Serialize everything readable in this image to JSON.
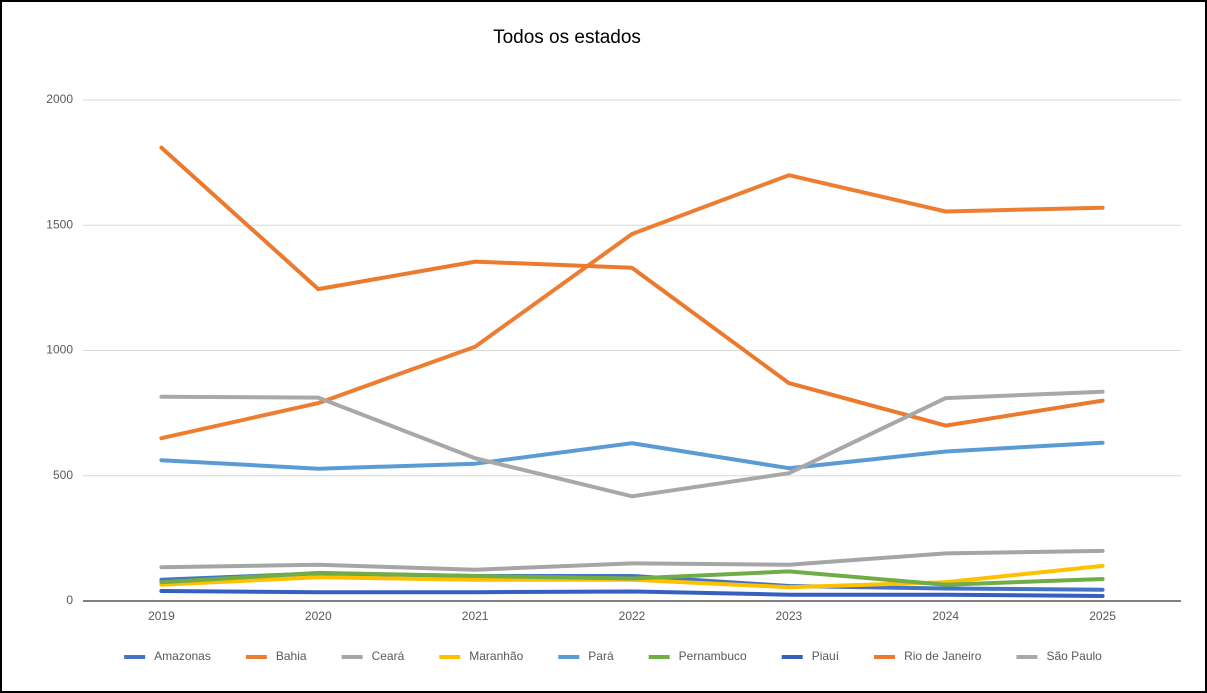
{
  "chart_data": {
    "type": "line",
    "title": "Todos os estados",
    "categories": [
      "2019",
      "2020",
      "2021",
      "2022",
      "2023",
      "2024",
      "2025"
    ],
    "series": [
      {
        "name": "Amazonas",
        "color": "#4472c4",
        "values": [
          85,
          110,
          100,
          100,
          60,
          50,
          45
        ]
      },
      {
        "name": "Bahia",
        "color": "#ed7d31",
        "values": [
          650,
          790,
          1015,
          1465,
          1700,
          1555,
          1570
        ]
      },
      {
        "name": "Ceará",
        "color": "#a5a5a5",
        "values": [
          135,
          145,
          125,
          150,
          145,
          190,
          200
        ]
      },
      {
        "name": "Maranhão",
        "color": "#ffc000",
        "values": [
          65,
          95,
          85,
          85,
          55,
          75,
          140
        ]
      },
      {
        "name": "Pará",
        "color": "#5b9bd5",
        "values": [
          562,
          528,
          548,
          630,
          530,
          597,
          632
        ]
      },
      {
        "name": "Pernambuco",
        "color": "#70ad47",
        "values": [
          75,
          112,
          100,
          90,
          118,
          65,
          88
        ]
      },
      {
        "name": "Piauí",
        "color": "#3560c0",
        "values": [
          40,
          35,
          35,
          38,
          25,
          25,
          20
        ]
      },
      {
        "name": "Rio de Janeiro",
        "color": "#eb7a2f",
        "values": [
          1810,
          1245,
          1355,
          1330,
          870,
          700,
          800
        ]
      },
      {
        "name": "São Paulo",
        "color": "#a8a8a8",
        "values": [
          815,
          812,
          570,
          418,
          510,
          810,
          835
        ]
      }
    ],
    "ylim": [
      0,
      2000
    ],
    "yticks": [
      0,
      500,
      1000,
      1500,
      2000
    ],
    "grid": true,
    "legend": "bottom"
  }
}
